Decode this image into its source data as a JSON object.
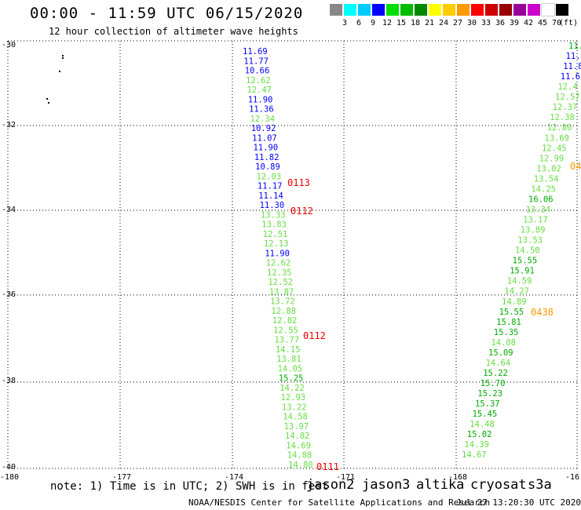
{
  "title": "00:00 - 11:59 UTC 06/15/2020",
  "subtitle": "12 hour collection of altimeter wave heights",
  "legend": {
    "unit": "(ft)",
    "colors": [
      "#888888",
      "#00ffff",
      "#00ccff",
      "#0000ff",
      "#00dd00",
      "#00bb00",
      "#008800",
      "#ffff00",
      "#ffcc00",
      "#ff9900",
      "#ff0000",
      "#cc0000",
      "#990000",
      "#990099",
      "#cc00cc",
      "#ffffff",
      "#000000"
    ],
    "labels": [
      "3",
      "6",
      "9",
      "12",
      "15",
      "18",
      "21",
      "24",
      "27",
      "30",
      "33",
      "36",
      "39",
      "42",
      "45",
      "70"
    ]
  },
  "axes": {
    "lat_ticks": [
      "-30",
      "-32",
      "-34",
      "-36",
      "-38",
      "-40"
    ],
    "lon_ticks": [
      "-180",
      "-177",
      "-174",
      "-171",
      "-168",
      "-16"
    ]
  },
  "tracks": {
    "west": {
      "values": [
        "11.69",
        "11.77",
        "10.66",
        "12.62",
        "12.47",
        "11.90",
        "11.36",
        "12.34",
        "10.92",
        "11.07",
        "11.90",
        "11.82",
        "10.89",
        "12.03",
        "11.17",
        "11.14",
        "11.30",
        "13.33",
        "13.83",
        "12.51",
        "12.13",
        "11.90",
        "12.62",
        "12.35",
        "12.52",
        "13.87",
        "13.72",
        "12.88",
        "12.82",
        "12.55",
        "13.77",
        "14.15",
        "13.81",
        "14.05",
        "15.25",
        "14.22",
        "12.93",
        "13.22",
        "14.58",
        "13.97",
        "14.82",
        "14.69",
        "14.88",
        "14.80"
      ],
      "colors": [
        "#0000ff",
        "#0000ff",
        "#0000ff",
        "#66dd44",
        "#66dd44",
        "#0000ff",
        "#0000ff",
        "#66dd44",
        "#0000ff",
        "#0000ff",
        "#0000ff",
        "#0000ff",
        "#0000ff",
        "#66dd44",
        "#0000ff",
        "#0000ff",
        "#0000ff",
        "#66dd44",
        "#66dd44",
        "#66dd44",
        "#66dd44",
        "#0000ff",
        "#66dd44",
        "#66dd44",
        "#66dd44",
        "#66dd44",
        "#66dd44",
        "#66dd44",
        "#66dd44",
        "#66dd44",
        "#66dd44",
        "#66dd44",
        "#66dd44",
        "#66dd44",
        "#00aa00",
        "#66dd44",
        "#66dd44",
        "#66dd44",
        "#66dd44",
        "#66dd44",
        "#66dd44",
        "#66dd44",
        "#66dd44",
        "#66dd44"
      ]
    },
    "east": {
      "values": [
        "11.",
        "11.",
        "11.8",
        "11.6",
        "12.4",
        "12.57",
        "12.37",
        "12.38",
        "12.80",
        "13.69",
        "12.45",
        "12.99",
        "13.02",
        "13.54",
        "14.25",
        "16.06",
        "13.34",
        "13.17",
        "13.89",
        "13.53",
        "14.50",
        "15.55",
        "15.91",
        "14.59",
        "14.27",
        "14.89",
        "15.55",
        "15.81",
        "15.35",
        "14.08",
        "15.09",
        "14.64",
        "15.22",
        "15.70",
        "15.23",
        "15.37",
        "15.45",
        "14.48",
        "15.02",
        "14.39",
        "14.67"
      ],
      "colors": [
        "#00aa00",
        "#0000ff",
        "#0000ff",
        "#0000ff",
        "#66dd44",
        "#66dd44",
        "#66dd44",
        "#66dd44",
        "#66dd44",
        "#66dd44",
        "#66dd44",
        "#66dd44",
        "#66dd44",
        "#66dd44",
        "#66dd44",
        "#00aa00",
        "#66dd44",
        "#66dd44",
        "#66dd44",
        "#66dd44",
        "#66dd44",
        "#00aa00",
        "#00aa00",
        "#66dd44",
        "#66dd44",
        "#66dd44",
        "#00aa00",
        "#00aa00",
        "#00aa00",
        "#66dd44",
        "#00aa00",
        "#66dd44",
        "#00aa00",
        "#00aa00",
        "#00aa00",
        "#00aa00",
        "#00aa00",
        "#66dd44",
        "#00aa00",
        "#66dd44",
        "#66dd44"
      ]
    }
  },
  "time_labels": {
    "red": "#ee0000",
    "orange": "#ff9900",
    "t1": "0113",
    "t2": "0112",
    "t3": "0112",
    "t4": "0111",
    "t5": "0438",
    "t6": "04"
  },
  "note": "note: 1) Time is in UTC; 2) SWH is in feet",
  "satellites": [
    {
      "name": "jason2",
      "color": "#0000ee"
    },
    {
      "name": "jason3",
      "color": "#00aa00"
    },
    {
      "name": "altika",
      "color": "#ff9900"
    },
    {
      "name": "cryosat",
      "color": "#ee0000"
    },
    {
      "name": "s3a",
      "color": "#aa0000"
    }
  ],
  "credit": "NOAA/NESDIS Center for Satellite Applications and Research",
  "timestamp": "Jul 27 13:20:30 UTC 2020"
}
